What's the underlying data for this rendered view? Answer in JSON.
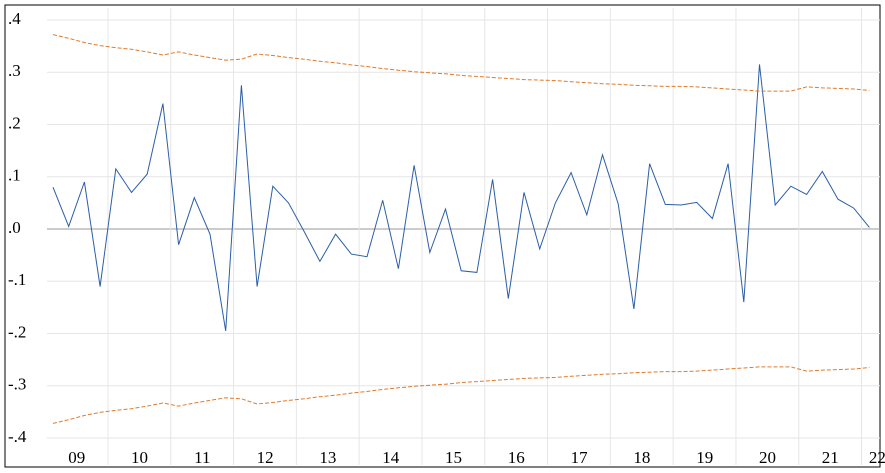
{
  "chart_data": {
    "type": "line",
    "categories": [
      null,
      "09",
      null,
      null,
      null,
      "10",
      null,
      null,
      null,
      "11",
      null,
      null,
      null,
      "12",
      null,
      null,
      null,
      "13",
      null,
      null,
      null,
      "14",
      null,
      null,
      null,
      "15",
      null,
      null,
      null,
      "16",
      null,
      null,
      null,
      "17",
      null,
      null,
      null,
      "18",
      null,
      null,
      null,
      "19",
      null,
      null,
      null,
      "20",
      null,
      null,
      null,
      "21",
      null,
      null,
      "22"
    ],
    "series": [
      {
        "color": "#2b5ea7",
        "dash": false,
        "values": [
          0.08,
          0.005,
          0.09,
          -0.11,
          0.115,
          0.07,
          0.105,
          0.24,
          -0.03,
          0.06,
          -0.01,
          -0.195,
          0.275,
          -0.11,
          0.082,
          0.05,
          -0.005,
          -0.062,
          -0.01,
          -0.048,
          -0.053,
          0.055,
          -0.076,
          0.122,
          -0.045,
          0.038,
          -0.08,
          -0.083,
          0.095,
          -0.133,
          0.07,
          -0.038,
          0.05,
          0.108,
          0.027,
          0.142,
          0.048,
          -0.153,
          0.125,
          0.047,
          0.046,
          0.051,
          0.02,
          0.125,
          -0.14,
          0.315,
          0.046,
          0.082,
          0.066,
          0.11,
          0.057,
          0.04,
          0.003
        ]
      },
      {
        "color": "#e07b2c",
        "dash": true,
        "values": [
          0.372,
          0.365,
          0.357,
          0.351,
          0.347,
          0.344,
          0.339,
          0.333,
          0.339,
          0.333,
          0.328,
          0.323,
          0.325,
          0.335,
          0.332,
          0.328,
          0.325,
          0.321,
          0.318,
          0.314,
          0.311,
          0.307,
          0.304,
          0.301,
          0.299,
          0.297,
          0.294,
          0.292,
          0.29,
          0.288,
          0.286,
          0.285,
          0.284,
          0.282,
          0.28,
          0.278,
          0.277,
          0.275,
          0.274,
          0.273,
          0.273,
          0.272,
          0.27,
          0.268,
          0.266,
          0.264,
          0.264,
          0.264,
          0.272,
          0.27,
          0.269,
          0.268,
          0.265
        ]
      },
      {
        "color": "#e07b2c",
        "dash": true,
        "values": [
          -0.372,
          -0.365,
          -0.357,
          -0.351,
          -0.347,
          -0.344,
          -0.339,
          -0.333,
          -0.339,
          -0.333,
          -0.328,
          -0.323,
          -0.325,
          -0.335,
          -0.332,
          -0.328,
          -0.325,
          -0.321,
          -0.318,
          -0.314,
          -0.311,
          -0.307,
          -0.304,
          -0.301,
          -0.299,
          -0.297,
          -0.294,
          -0.292,
          -0.29,
          -0.288,
          -0.286,
          -0.285,
          -0.284,
          -0.282,
          -0.28,
          -0.278,
          -0.277,
          -0.275,
          -0.274,
          -0.273,
          -0.273,
          -0.272,
          -0.27,
          -0.268,
          -0.266,
          -0.264,
          -0.264,
          -0.264,
          -0.272,
          -0.27,
          -0.269,
          -0.268,
          -0.265
        ]
      }
    ],
    "ylim": [
      -0.4,
      0.4
    ],
    "yticks": [
      {
        "value": -0.4,
        "label": "-.4"
      },
      {
        "value": -0.3,
        "label": "-.3"
      },
      {
        "value": -0.2,
        "label": "-.2"
      },
      {
        "value": -0.1,
        "label": "-.1"
      },
      {
        "value": 0,
        "label": ".0"
      },
      {
        "value": 0.1,
        "label": ".1"
      },
      {
        "value": 0.2,
        "label": ".2"
      },
      {
        "value": 0.3,
        "label": ".3"
      },
      {
        "value": 0.4,
        "label": ".4"
      }
    ],
    "grid": true
  }
}
